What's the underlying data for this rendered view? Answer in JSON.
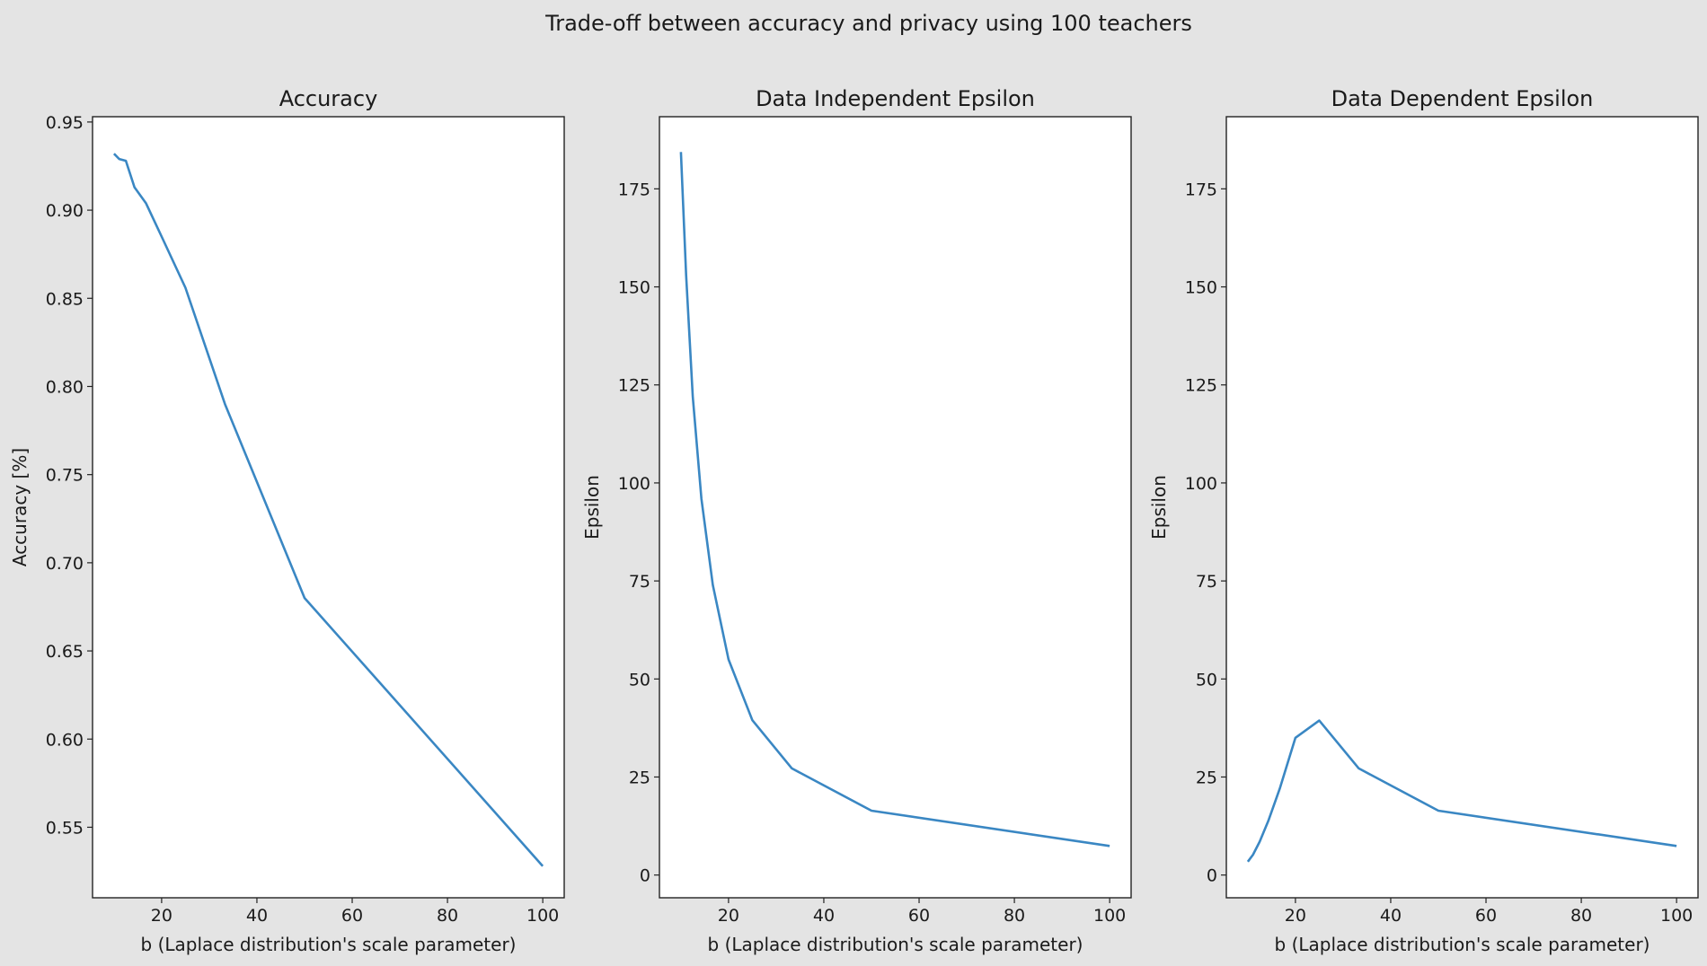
{
  "figure": {
    "suptitle": "Trade-off between accuracy and privacy using 100 teachers",
    "line_color": "#3a87c3"
  },
  "chart_data": [
    {
      "type": "line",
      "title": "Accuracy",
      "xlabel": "b (Laplace distribution's scale parameter)",
      "ylabel": "Accuracy [%]",
      "xlim": [
        5.5,
        104.5
      ],
      "ylim": [
        0.51,
        0.953
      ],
      "xticks": [
        20,
        40,
        60,
        80,
        100
      ],
      "yticks": [
        0.55,
        0.6,
        0.65,
        0.7,
        0.75,
        0.8,
        0.85,
        0.9,
        0.95
      ],
      "ytick_labels": [
        "0.55",
        "0.60",
        "0.65",
        "0.70",
        "0.75",
        "0.80",
        "0.85",
        "0.90",
        "0.95"
      ],
      "grid": false,
      "x": [
        10,
        11.1,
        12.5,
        14.3,
        16.7,
        20,
        25,
        33.3,
        50,
        100
      ],
      "y": [
        0.932,
        0.929,
        0.928,
        0.913,
        0.904,
        0.885,
        0.856,
        0.79,
        0.68,
        0.528
      ]
    },
    {
      "type": "line",
      "title": "Data Independent Epsilon",
      "xlabel": "b (Laplace distribution's scale parameter)",
      "ylabel": "Epsilon",
      "xlim": [
        5.5,
        104.5
      ],
      "ylim": [
        -5.8,
        193.4
      ],
      "xticks": [
        20,
        40,
        60,
        80,
        100
      ],
      "yticks": [
        0,
        25,
        50,
        75,
        100,
        125,
        150,
        175
      ],
      "ytick_labels": [
        "0",
        "25",
        "50",
        "75",
        "100",
        "125",
        "150",
        "175"
      ],
      "grid": false,
      "x": [
        10,
        11.1,
        12.5,
        14.3,
        16.7,
        20,
        25,
        33.3,
        50,
        100
      ],
      "y": [
        184.4,
        153.0,
        122.0,
        96.0,
        74.0,
        55.0,
        39.5,
        27.2,
        16.4,
        7.4
      ]
    },
    {
      "type": "line",
      "title": "Data Dependent Epsilon",
      "xlabel": "b (Laplace distribution's scale parameter)",
      "ylabel": "Epsilon",
      "xlim": [
        5.5,
        104.5
      ],
      "ylim": [
        -5.8,
        193.4
      ],
      "xticks": [
        20,
        40,
        60,
        80,
        100
      ],
      "yticks": [
        0,
        25,
        50,
        75,
        100,
        125,
        150,
        175
      ],
      "ytick_labels": [
        "0",
        "25",
        "50",
        "75",
        "100",
        "125",
        "150",
        "175"
      ],
      "grid": false,
      "x": [
        10,
        11.1,
        12.5,
        14.3,
        16.7,
        20,
        25,
        33.3,
        50,
        100
      ],
      "y": [
        3.4,
        5.2,
        8.5,
        13.8,
        22.0,
        35.0,
        39.4,
        27.2,
        16.4,
        7.4
      ]
    }
  ]
}
